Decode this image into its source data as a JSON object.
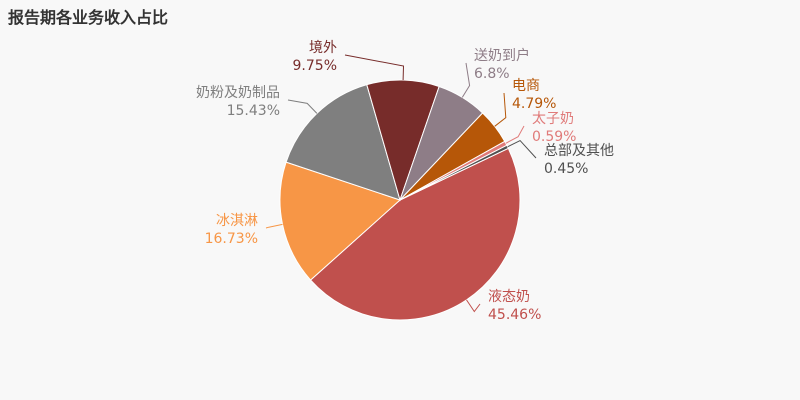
{
  "chart_data": {
    "type": "pie",
    "title": "报告期各业务收入占比",
    "slices": [
      {
        "name": "液态奶",
        "value": 45.46,
        "label": "45.46%",
        "color": "#c0504d"
      },
      {
        "name": "冰淇淋",
        "value": 16.73,
        "label": "16.73%",
        "color": "#f79646"
      },
      {
        "name": "奶粉及奶制品",
        "value": 15.43,
        "label": "15.43%",
        "color": "#7f7f7f"
      },
      {
        "name": "境外",
        "value": 9.75,
        "label": "9.75%",
        "color": "#772c2a"
      },
      {
        "name": "送奶到户",
        "value": 6.8,
        "label": "6.8%",
        "color": "#8e7d87"
      },
      {
        "name": "电商",
        "value": 4.79,
        "label": "4.79%",
        "color": "#b65708"
      },
      {
        "name": "太子奶",
        "value": 0.59,
        "label": "0.59%",
        "color": "#e07b7a"
      },
      {
        "name": "总部及其他",
        "value": 0.45,
        "label": "0.45%",
        "color": "#505050"
      }
    ]
  }
}
